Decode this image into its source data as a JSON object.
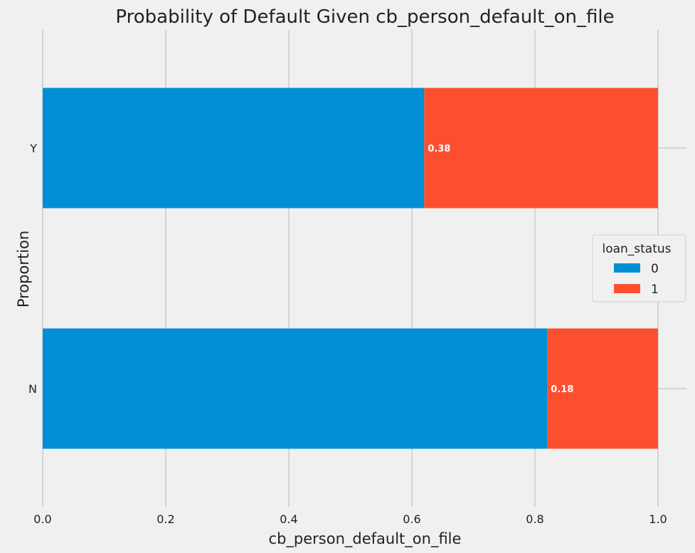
{
  "chart_data": {
    "type": "bar",
    "orientation": "horizontal",
    "stacked": true,
    "title": "Probability of Default Given cb_person_default_on_file",
    "xlabel": "cb_person_default_on_file",
    "ylabel": "Proportion",
    "xlim": [
      0,
      1.0
    ],
    "x_ticks": [
      "0.0",
      "0.2",
      "0.4",
      "0.6",
      "0.8",
      "1.0"
    ],
    "categories": [
      "Y",
      "N"
    ],
    "series": [
      {
        "name": "0",
        "values": [
          0.62,
          0.82
        ],
        "color": "#008fd5"
      },
      {
        "name": "1",
        "values": [
          0.38,
          0.18
        ],
        "color": "#fc4f30"
      }
    ],
    "data_labels": [
      "0.38",
      "0.18"
    ],
    "legend": {
      "title": "loan_status",
      "placement": "center-right"
    },
    "grid": true
  }
}
